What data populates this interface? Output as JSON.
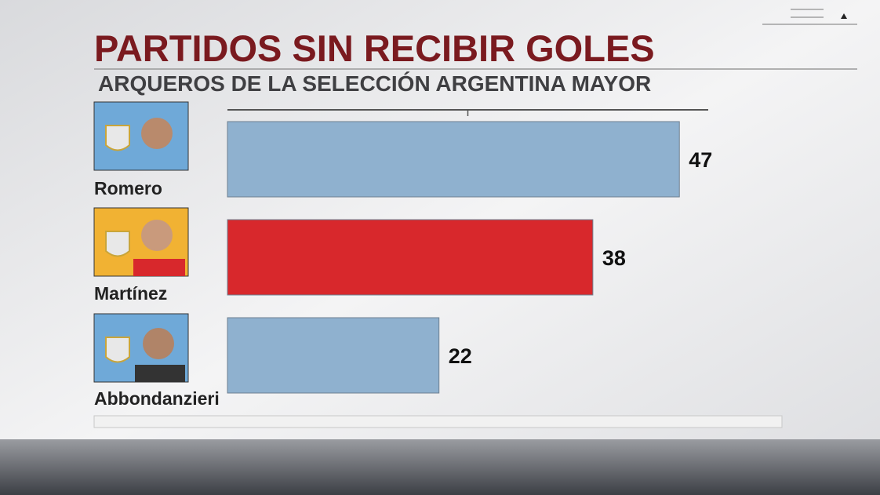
{
  "chart_data": {
    "type": "hbar",
    "title": "PARTIDOS SIN RECIBIR GOLES",
    "subtitle": "ARQUEROS DE LA SELECCIÓN ARGENTINA MAYOR",
    "categories": [
      "Romero",
      "Martínez",
      "Abbondanzieri"
    ],
    "values": [
      47,
      38,
      22
    ],
    "colors": [
      "#8fb1cf",
      "#d8282c",
      "#8fb1cf"
    ],
    "xlim": [
      0,
      50
    ],
    "xticks": [
      25
    ]
  }
}
